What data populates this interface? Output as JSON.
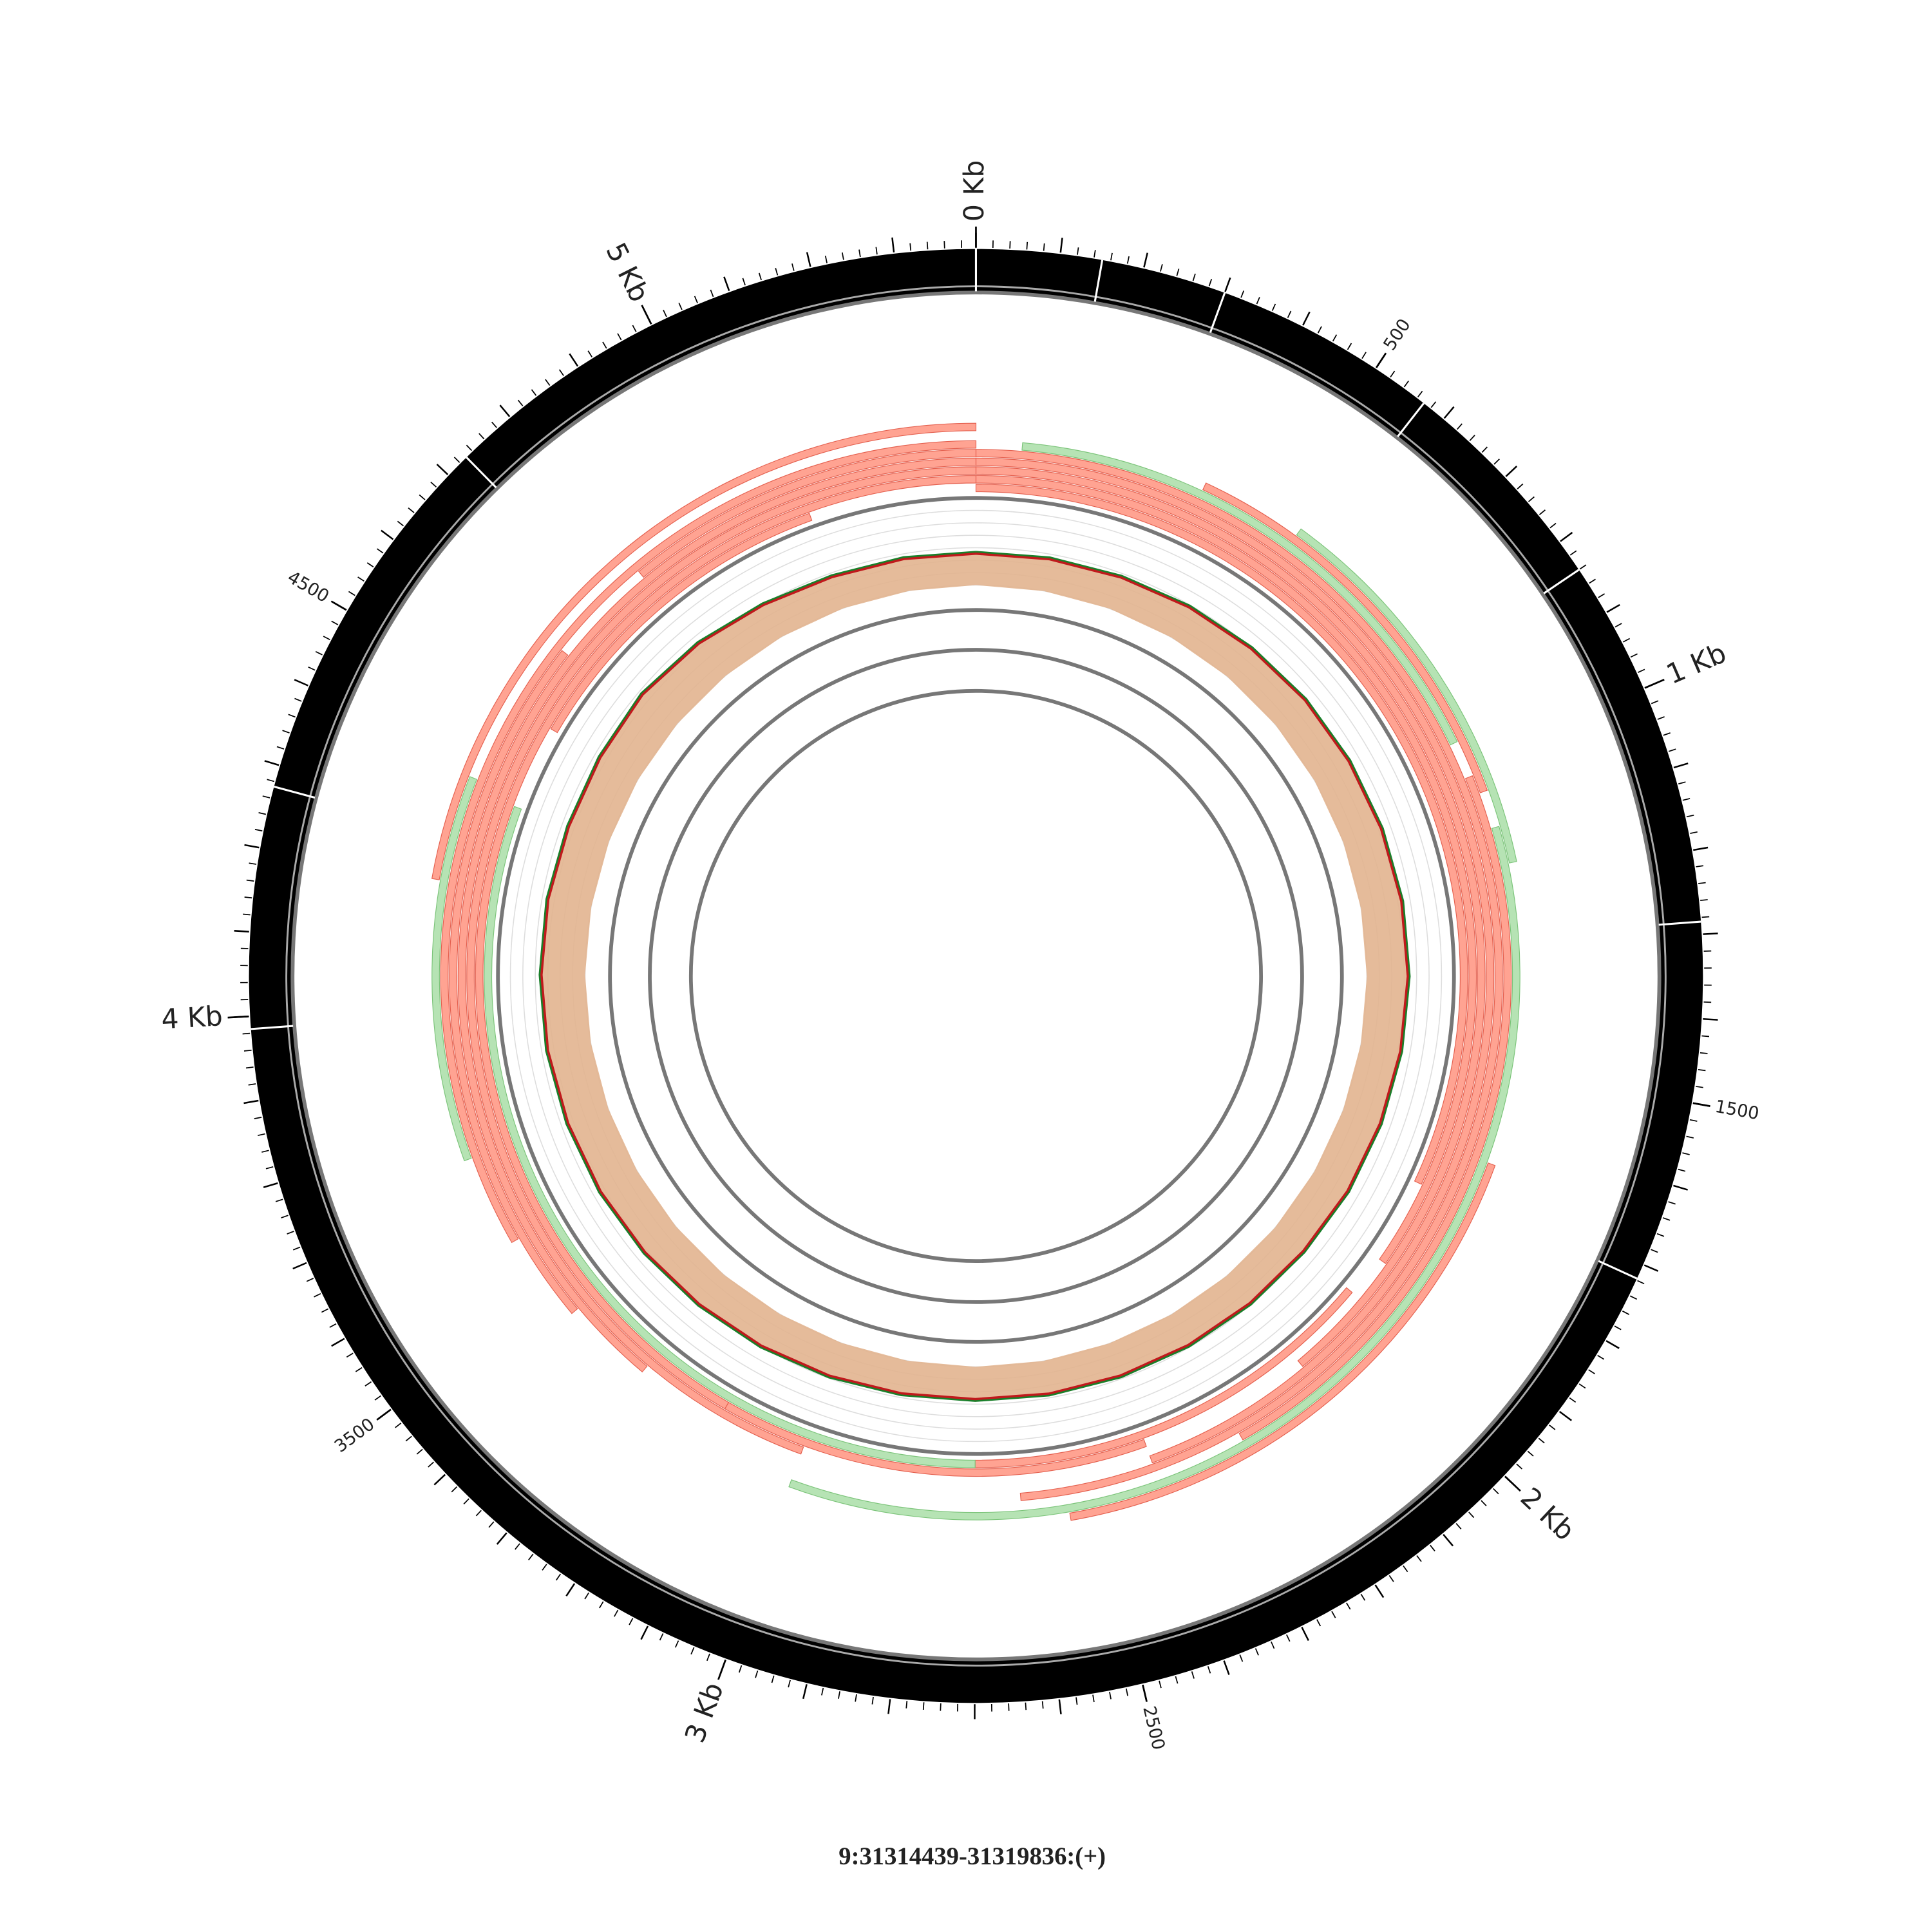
{
  "chart_data": {
    "type": "circos",
    "title": "9:31314439-31319836:(+)",
    "xlim": [
      0,
      5397
    ],
    "xticks": [
      {
        "value": 0,
        "label": "0 Kb"
      },
      {
        "value": 1000,
        "label": "1 Kb"
      },
      {
        "value": 2000,
        "label": "2 Kb"
      },
      {
        "value": 3000,
        "label": "3 Kb"
      },
      {
        "value": 4000,
        "label": "4 Kb"
      },
      {
        "value": 5000,
        "label": "5 Kb"
      }
    ],
    "minor_xticks": [
      500,
      1500,
      2500,
      3500,
      4500
    ],
    "tick_step": 20,
    "tick_step_medium": 100,
    "band_color": "#000000",
    "band_boundaries": [
      0,
      150,
      300,
      570,
      840,
      1285,
      1718,
      3985,
      4274,
      4730
    ],
    "reads": [
      {
        "start": 0,
        "end": 1725,
        "color": "#ffa392"
      },
      {
        "start": 0,
        "end": 1875,
        "color": "#ffa392"
      },
      {
        "start": 0,
        "end": 2100,
        "color": "#ffa392"
      },
      {
        "start": 0,
        "end": 2400,
        "color": "#ffa392"
      },
      {
        "start": 0,
        "end": 2625,
        "color": "#ffa392"
      },
      {
        "start": 75,
        "end": 960,
        "color": "#b6e3b4"
      },
      {
        "start": 375,
        "end": 1050,
        "color": "#ffa392"
      },
      {
        "start": 540,
        "end": 1170,
        "color": "#b6e3b4"
      },
      {
        "start": 1020,
        "end": 2250,
        "color": "#ffa392"
      },
      {
        "start": 1110,
        "end": 3000,
        "color": "#b6e3b4"
      },
      {
        "start": 1650,
        "end": 2550,
        "color": "#ffa392"
      },
      {
        "start": 1950,
        "end": 2700,
        "color": "#ffa392"
      },
      {
        "start": 2400,
        "end": 3150,
        "color": "#ffa392"
      },
      {
        "start": 2700,
        "end": 4350,
        "color": "#b6e3b4"
      },
      {
        "start": 3000,
        "end": 5397,
        "color": "#ffa392"
      },
      {
        "start": 3150,
        "end": 5397,
        "color": "#ffa392"
      },
      {
        "start": 3300,
        "end": 5397,
        "color": "#ffa392"
      },
      {
        "start": 3450,
        "end": 4620,
        "color": "#ffa392"
      },
      {
        "start": 3600,
        "end": 5397,
        "color": "#ffa392"
      },
      {
        "start": 3750,
        "end": 4370,
        "color": "#b6e3b4"
      },
      {
        "start": 4200,
        "end": 5397,
        "color": "#ffa392"
      },
      {
        "start": 4500,
        "end": 5100,
        "color": "#ffa392"
      },
      {
        "start": 4800,
        "end": 5397,
        "color": "#ffa392"
      }
    ],
    "coverage": {
      "x": [
        0,
        150,
        300,
        450,
        600,
        750,
        900,
        1050,
        1200,
        1350,
        1500,
        1650,
        1800,
        1950,
        2100,
        2250,
        2400,
        2550,
        2700,
        2850,
        3000,
        3150,
        3300,
        3450,
        3600,
        3750,
        3900,
        4050,
        4200,
        4350,
        4500,
        4650,
        4800,
        4950,
        5100,
        5250,
        5397
      ],
      "ylim": [
        0,
        100
      ],
      "fill": "#e2b48f",
      "series": [
        {
          "color": "#1a7f2a",
          "values": [
            38,
            39,
            40,
            42,
            44,
            46,
            47,
            48,
            49,
            49,
            48,
            47,
            46,
            44,
            43,
            42,
            41,
            40,
            39,
            40,
            42,
            44,
            46,
            48,
            50,
            51,
            52,
            52,
            52,
            51,
            52,
            54,
            50,
            44,
            40,
            39,
            38
          ]
        },
        {
          "color": "#c0191c",
          "values": [
            36,
            37,
            38,
            40,
            42,
            44,
            45,
            46,
            47,
            47,
            46,
            45,
            44,
            42,
            41,
            40,
            39,
            38,
            37,
            38,
            40,
            42,
            44,
            46,
            48,
            49,
            50,
            50,
            50,
            49,
            50,
            52,
            48,
            42,
            38,
            37,
            36
          ]
        }
      ]
    }
  }
}
